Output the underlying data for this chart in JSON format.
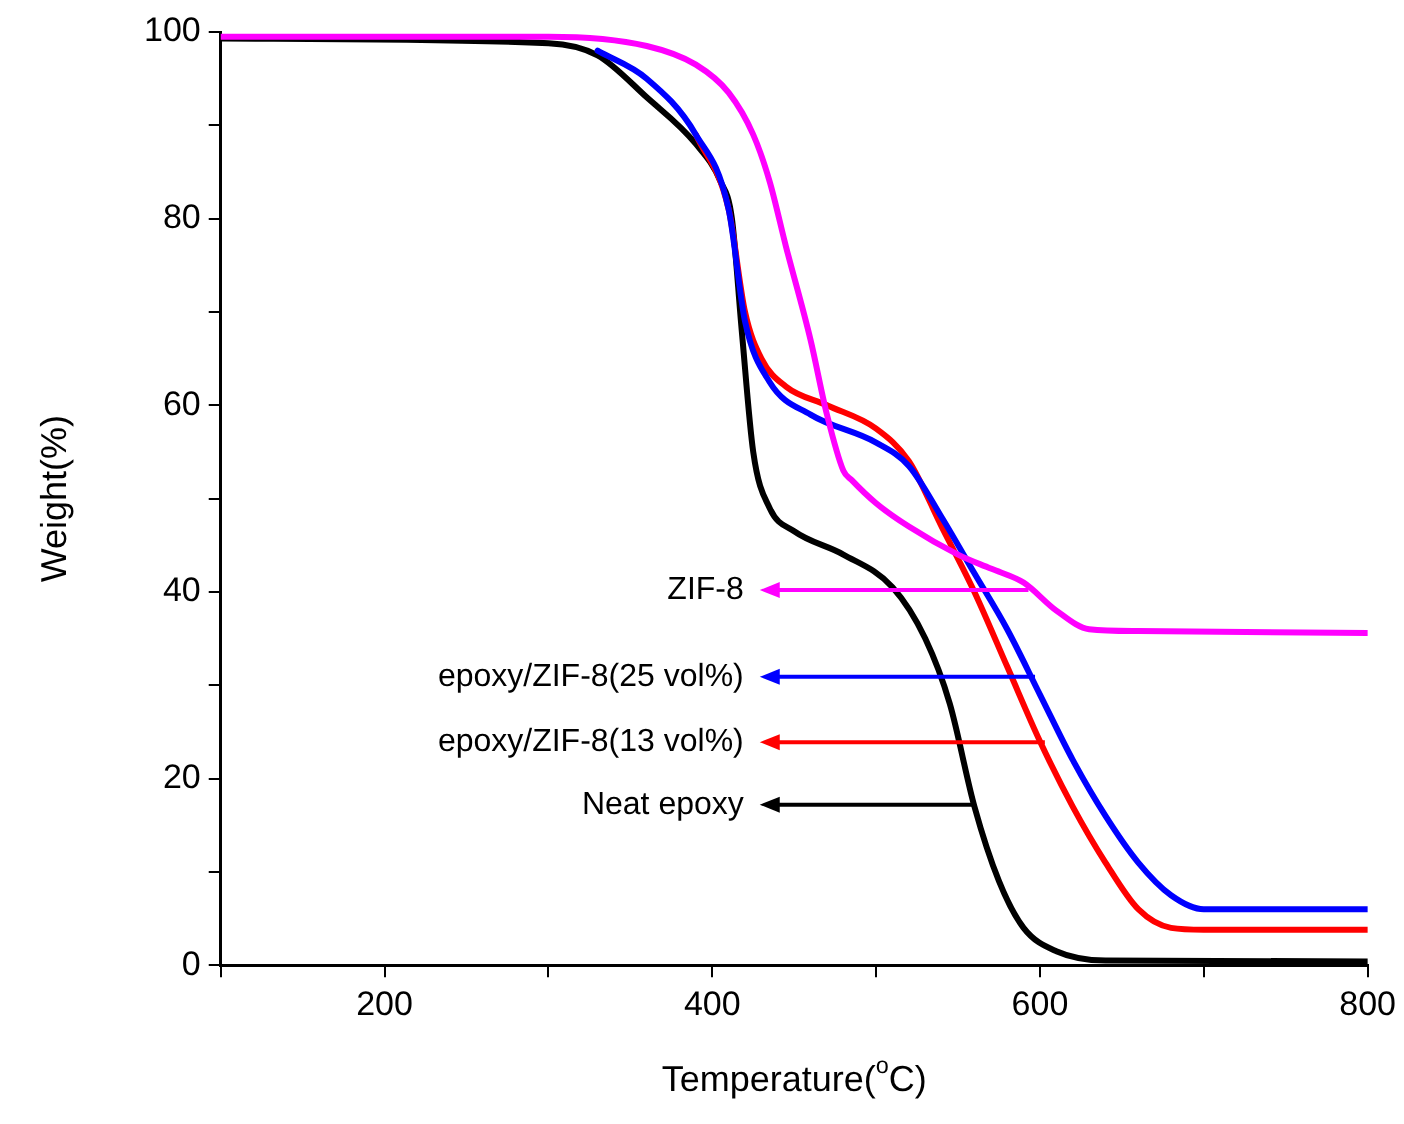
{
  "chart_data": {
    "type": "line",
    "xlabel": "Temperature($^{o}$C)",
    "ylabel": "Weight(%)",
    "xlim": [
      100,
      800
    ],
    "ylim": [
      0,
      100
    ],
    "xticks": [
      {
        "value": 100,
        "label": null
      },
      200,
      {
        "value": 300,
        "label": null
      },
      400,
      {
        "value": 500,
        "label": null
      },
      600,
      {
        "value": 700,
        "label": null
      },
      800
    ],
    "yticks": [
      0,
      {
        "value": 10,
        "label": null
      },
      20,
      {
        "value": 30,
        "label": null
      },
      40,
      {
        "value": 50,
        "label": null
      },
      60,
      {
        "value": 70,
        "label": null
      },
      80,
      {
        "value": 90,
        "label": null
      },
      100
    ],
    "grid": false,
    "legend": false,
    "marker": "none",
    "line_style": "solid",
    "series": [
      {
        "color": "#ff00ff",
        "x": [
          100,
          300,
          360,
          390,
          410,
          425,
          435,
          445,
          460,
          470,
          480,
          485,
          500,
          520,
          550,
          570,
          590,
          610,
          630,
          660,
          800
        ],
        "values": [
          99.5,
          99.5,
          98.5,
          96.5,
          93.5,
          89,
          84,
          77,
          67,
          59,
          53,
          52,
          49.5,
          47,
          44,
          42.5,
          41,
          38,
          36,
          35.8,
          35.6
        ]
      },
      {
        "color": "#0000ff",
        "x": [
          330,
          360,
          390,
          410,
          420,
          435,
          460,
          500,
          520,
          540,
          560,
          580,
          600,
          620,
          640,
          660,
          680,
          700,
          800
        ],
        "values": [
          98,
          95,
          89,
          81,
          69,
          62.5,
          59,
          56,
          53.5,
          48,
          42,
          36,
          29,
          22,
          16,
          11,
          7.5,
          6,
          6
        ]
      },
      {
        "color": "#ff0000",
        "x": [
          390,
          410,
          420,
          430,
          445,
          470,
          500,
          520,
          540,
          560,
          580,
          600,
          620,
          640,
          660,
          680,
          700,
          800
        ],
        "values": [
          89,
          81,
          70,
          65,
          62,
          60,
          57.5,
          54,
          47,
          40,
          32,
          24,
          17,
          11,
          6,
          4,
          3.8,
          3.8
        ]
      },
      {
        "color": "#000000",
        "x": [
          100,
          300,
          330,
          360,
          390,
          405,
          412,
          418,
          425,
          435,
          450,
          480,
          510,
          530,
          545,
          560,
          575,
          590,
          610,
          640,
          800
        ],
        "values": [
          99.3,
          98.8,
          97.5,
          93,
          88,
          84,
          80,
          68,
          55,
          49,
          46.5,
          44,
          40.5,
          35,
          28,
          17,
          9,
          4,
          1.5,
          0.5,
          0.4
        ]
      }
    ],
    "annotations": [
      {
        "text": "ZIF-8",
        "x": 593,
        "y": 40.2
      },
      {
        "text": "epoxy/ZIF-8(25 vol%)",
        "x": 597,
        "y": 30.9
      },
      {
        "text": "epoxy/ZIF-8(13 vol%)",
        "x": 603,
        "y": 23.9
      },
      {
        "text": "Neat epoxy",
        "x": 560,
        "y": 17.2
      }
    ]
  }
}
